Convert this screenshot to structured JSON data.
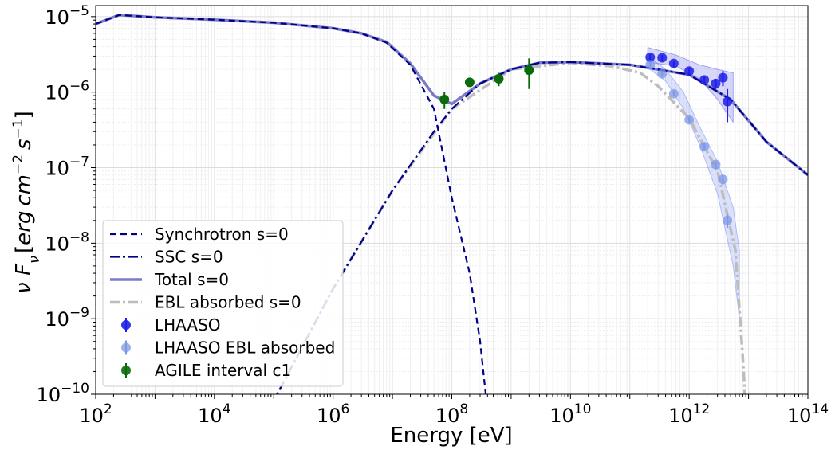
{
  "chart_data": {
    "type": "line",
    "xscale": "log",
    "yscale": "log",
    "xlim": [
      100,
      100000000000000
    ],
    "ylim": [
      1e-10,
      1.4e-05
    ],
    "xlabel": "Energy [eV]",
    "ylabel": "νF_ν [erg cm^-2 s^-1]",
    "ylabel_parts": {
      "nu": "ν",
      "F": "F",
      "sub": "ν",
      "bracket_open": "[",
      "erg": "erg",
      "cm": "cm",
      "cm_exp": "−2",
      "s": "s",
      "s_exp": "−1",
      "bracket_close": "]"
    },
    "grid": true,
    "x_ticks": [
      {
        "value": 100,
        "base": "10",
        "exp": "2"
      },
      {
        "value": 10000,
        "base": "10",
        "exp": "4"
      },
      {
        "value": 1000000,
        "base": "10",
        "exp": "6"
      },
      {
        "value": 100000000,
        "base": "10",
        "exp": "8"
      },
      {
        "value": 10000000000,
        "base": "10",
        "exp": "10"
      },
      {
        "value": 1000000000000,
        "base": "10",
        "exp": "12"
      },
      {
        "value": 100000000000000,
        "base": "10",
        "exp": "14"
      }
    ],
    "y_ticks": [
      {
        "value": 1e-10,
        "base": "10",
        "exp": "−10"
      },
      {
        "value": 1e-09,
        "base": "10",
        "exp": "−9"
      },
      {
        "value": 1e-08,
        "base": "10",
        "exp": "−8"
      },
      {
        "value": 1e-07,
        "base": "10",
        "exp": "−7"
      },
      {
        "value": 1e-06,
        "base": "10",
        "exp": "−6"
      },
      {
        "value": 1e-05,
        "base": "10",
        "exp": "−5"
      }
    ],
    "legend_position": "lower-left",
    "series": [
      {
        "name": "Synchrotron s=0",
        "kind": "line",
        "color": "#00008b",
        "dash": "dashed",
        "points": [
          [
            100,
            8e-06
          ],
          [
            250,
            1.05e-05
          ],
          [
            1000,
            9.8e-06
          ],
          [
            10000,
            9.1e-06
          ],
          [
            100000,
            8.3e-06
          ],
          [
            1000000,
            7e-06
          ],
          [
            3000000,
            6e-06
          ],
          [
            8000000,
            4.5e-06
          ],
          [
            20000000,
            2.3e-06
          ],
          [
            50000000,
            6e-07
          ],
          [
            100000000,
            4e-08
          ],
          [
            200000000,
            4e-09
          ],
          [
            300000000,
            5e-10
          ],
          [
            400000000,
            6e-11
          ]
        ]
      },
      {
        "name": "SSC s=0",
        "kind": "line",
        "color": "#00008b",
        "dash": "dashdot",
        "points": [
          [
            90000,
            7e-11
          ],
          [
            1000000,
            2.5e-09
          ],
          [
            10000000,
            5e-08
          ],
          [
            50000000,
            3e-07
          ],
          [
            100000000,
            6e-07
          ],
          [
            300000000,
            1.3e-06
          ],
          [
            1000000000,
            2e-06
          ],
          [
            3000000000,
            2.45e-06
          ],
          [
            10000000000,
            2.5e-06
          ],
          [
            100000000000,
            2.3e-06
          ],
          [
            1000000000000,
            1.7e-06
          ],
          [
            5000000000000,
            8e-07
          ],
          [
            20000000000000,
            2.2e-07
          ],
          [
            100000000000000,
            8e-08
          ]
        ]
      },
      {
        "name": "Total s=0",
        "kind": "line",
        "color": "#7b7bc8",
        "dash": "solid",
        "points": [
          [
            100,
            8e-06
          ],
          [
            250,
            1.05e-05
          ],
          [
            1000,
            9.8e-06
          ],
          [
            10000,
            9.1e-06
          ],
          [
            100000,
            8.3e-06
          ],
          [
            1000000,
            7e-06
          ],
          [
            3000000,
            6e-06
          ],
          [
            8000000,
            4.6e-06
          ],
          [
            20000000,
            2.4e-06
          ],
          [
            50000000,
            9e-07
          ],
          [
            100000000,
            7e-07
          ],
          [
            300000000,
            1.3e-06
          ],
          [
            1000000000,
            2e-06
          ],
          [
            3000000000,
            2.45e-06
          ],
          [
            10000000000,
            2.5e-06
          ],
          [
            100000000000,
            2.3e-06
          ],
          [
            1000000000000,
            1.7e-06
          ],
          [
            5000000000000,
            8e-07
          ],
          [
            20000000000000,
            2.2e-07
          ],
          [
            100000000000000,
            8e-08
          ]
        ]
      },
      {
        "name": "EBL absorbed s=0",
        "kind": "line",
        "color": "#bdbdbd",
        "dash": "dashdot",
        "points": [
          [
            90000,
            7e-11
          ],
          [
            1000000,
            2.5e-09
          ],
          [
            10000000,
            5e-08
          ],
          [
            100000000,
            6e-07
          ],
          [
            1000000000,
            2e-06
          ],
          [
            10000000000,
            2.45e-06
          ],
          [
            50000000000,
            2.2e-06
          ],
          [
            150000000000,
            1.8e-06
          ],
          [
            300000000000,
            1.2e-06
          ],
          [
            1000000000000,
            4.5e-07
          ],
          [
            3000000000000,
            9e-08
          ],
          [
            6000000000000,
            8e-09
          ],
          [
            8000000000000,
            3e-10
          ],
          [
            9000000000000,
            6e-11
          ]
        ]
      },
      {
        "name": "LHAASO",
        "kind": "points",
        "color": "#1f1fe8",
        "points": [
          [
            220000000000,
            2.9e-06
          ],
          [
            350000000000,
            2.85e-06
          ],
          [
            550000000000,
            2.4e-06
          ],
          [
            1000000000000,
            1.9e-06
          ],
          [
            1800000000000,
            1.45e-06
          ],
          [
            2800000000000,
            1.3e-06
          ],
          [
            3700000000000,
            1.55e-06
          ],
          [
            4400000000000,
            7.5e-07
          ]
        ],
        "yerr_low": [
          2.5e-06,
          2.55e-06,
          2.1e-06,
          1.7e-06,
          1.3e-06,
          1.1e-06,
          1.2e-06,
          4e-07
        ],
        "yerr_high": [
          3.2e-06,
          3.1e-06,
          2.6e-06,
          2.1e-06,
          1.6e-06,
          1.5e-06,
          1.9e-06,
          1.1e-06
        ]
      },
      {
        "name": "LHAASO EBL absorbed",
        "kind": "points",
        "color": "#7f98e6",
        "points": [
          [
            220000000000,
            2.3e-06
          ],
          [
            350000000000,
            1.75e-06
          ],
          [
            550000000000,
            9.5e-07
          ],
          [
            1000000000000,
            4.3e-07
          ],
          [
            1800000000000,
            1.9e-07
          ],
          [
            2800000000000,
            1.1e-07
          ],
          [
            3700000000000,
            7e-08
          ],
          [
            4400000000000,
            2e-08
          ]
        ],
        "yerr_low": [
          2.1e-06,
          1.6e-06,
          8.7e-07,
          3.9e-07,
          1.7e-07,
          9.7e-08,
          6e-08,
          1.6e-08
        ],
        "yerr_high": [
          2.5e-06,
          1.9e-06,
          1.05e-06,
          4.7e-07,
          2.1e-07,
          1.2e-07,
          8e-08,
          2.4e-08
        ]
      },
      {
        "name": "AGILE interval c1",
        "kind": "points",
        "color": "#0a6b0a",
        "points": [
          [
            75000000,
            8e-07
          ],
          [
            200000000,
            1.35e-06
          ],
          [
            620000000,
            1.5e-06
          ],
          [
            2000000000,
            1.95e-06
          ]
        ],
        "yerr_low": [
          6e-07,
          1.18e-06,
          1.2e-06,
          1.1e-06
        ],
        "yerr_high": [
          1e-06,
          1.52e-06,
          1.8e-06,
          2.8e-06
        ]
      }
    ],
    "bands": [
      {
        "name": "LHAASO band",
        "color": "#1f1fe8",
        "x": [
          200000000000,
          600000000000,
          1500000000000,
          3000000000000,
          5500000000000
        ],
        "low": [
          2.5e-06,
          2.2e-06,
          1.5e-06,
          8e-07,
          4e-07
        ],
        "high": [
          3.9e-06,
          3.1e-06,
          2.3e-06,
          2e-06,
          1.8e-06
        ]
      },
      {
        "name": "LHAASO EBL absorbed band",
        "color": "#3f5ff0",
        "x": [
          200000000000,
          400000000000,
          800000000000,
          1500000000000,
          3000000000000,
          5500000000000,
          7000000000000
        ],
        "low": [
          2.1e-06,
          1.4e-06,
          6e-07,
          2e-07,
          4.5e-08,
          5e-09,
          1e-09
        ],
        "high": [
          3e-06,
          2e-06,
          1e-06,
          3.5e-07,
          1.2e-07,
          3e-08,
          8e-09
        ]
      }
    ]
  }
}
